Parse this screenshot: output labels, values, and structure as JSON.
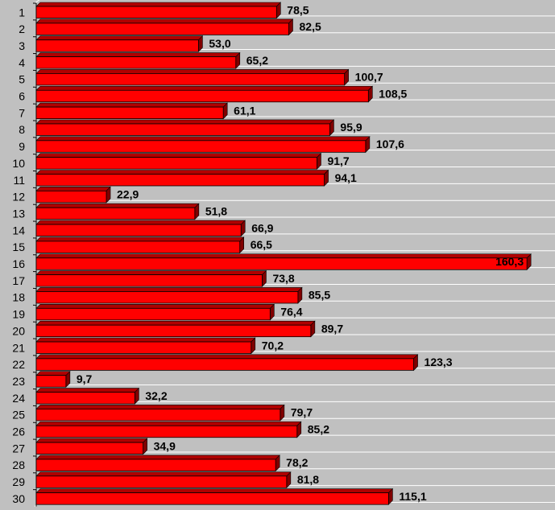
{
  "chart_data": {
    "type": "bar",
    "orientation": "horizontal",
    "categories": [
      "1",
      "2",
      "3",
      "4",
      "5",
      "6",
      "7",
      "8",
      "9",
      "10",
      "11",
      "12",
      "13",
      "14",
      "15",
      "16",
      "17",
      "18",
      "19",
      "20",
      "21",
      "22",
      "23",
      "24",
      "25",
      "26",
      "27",
      "28",
      "29",
      "30"
    ],
    "values": [
      78.5,
      82.5,
      53.0,
      65.2,
      100.7,
      108.5,
      61.1,
      95.9,
      107.6,
      91.7,
      94.1,
      22.9,
      51.8,
      66.9,
      66.5,
      160.3,
      73.8,
      85.5,
      76.4,
      89.7,
      70.2,
      123.3,
      9.7,
      32.2,
      79.7,
      85.2,
      34.9,
      78.2,
      81.8,
      115.1
    ],
    "value_labels": [
      "78,5",
      "82,5",
      "53,0",
      "65,2",
      "100,7",
      "108,5",
      "61,1",
      "95,9",
      "107,6",
      "91,7",
      "94,1",
      "22,9",
      "51,8",
      "66,9",
      "66,5",
      "160,3",
      "73,8",
      "85,5",
      "76,4",
      "89,7",
      "70,2",
      "123,3",
      "9,7",
      "32,2",
      "79,7",
      "85,2",
      "34,9",
      "78,2",
      "81,8",
      "115,1"
    ],
    "title": "",
    "xlabel": "",
    "ylabel": "",
    "xlim": [
      0,
      162
    ],
    "grid": true,
    "legend": "none",
    "colors": {
      "bar_face": "#ff0000",
      "bar_shadow": "#800000",
      "bar_side": "#b00000",
      "background": "#c0c0c0",
      "grid": "#ffffff"
    }
  }
}
